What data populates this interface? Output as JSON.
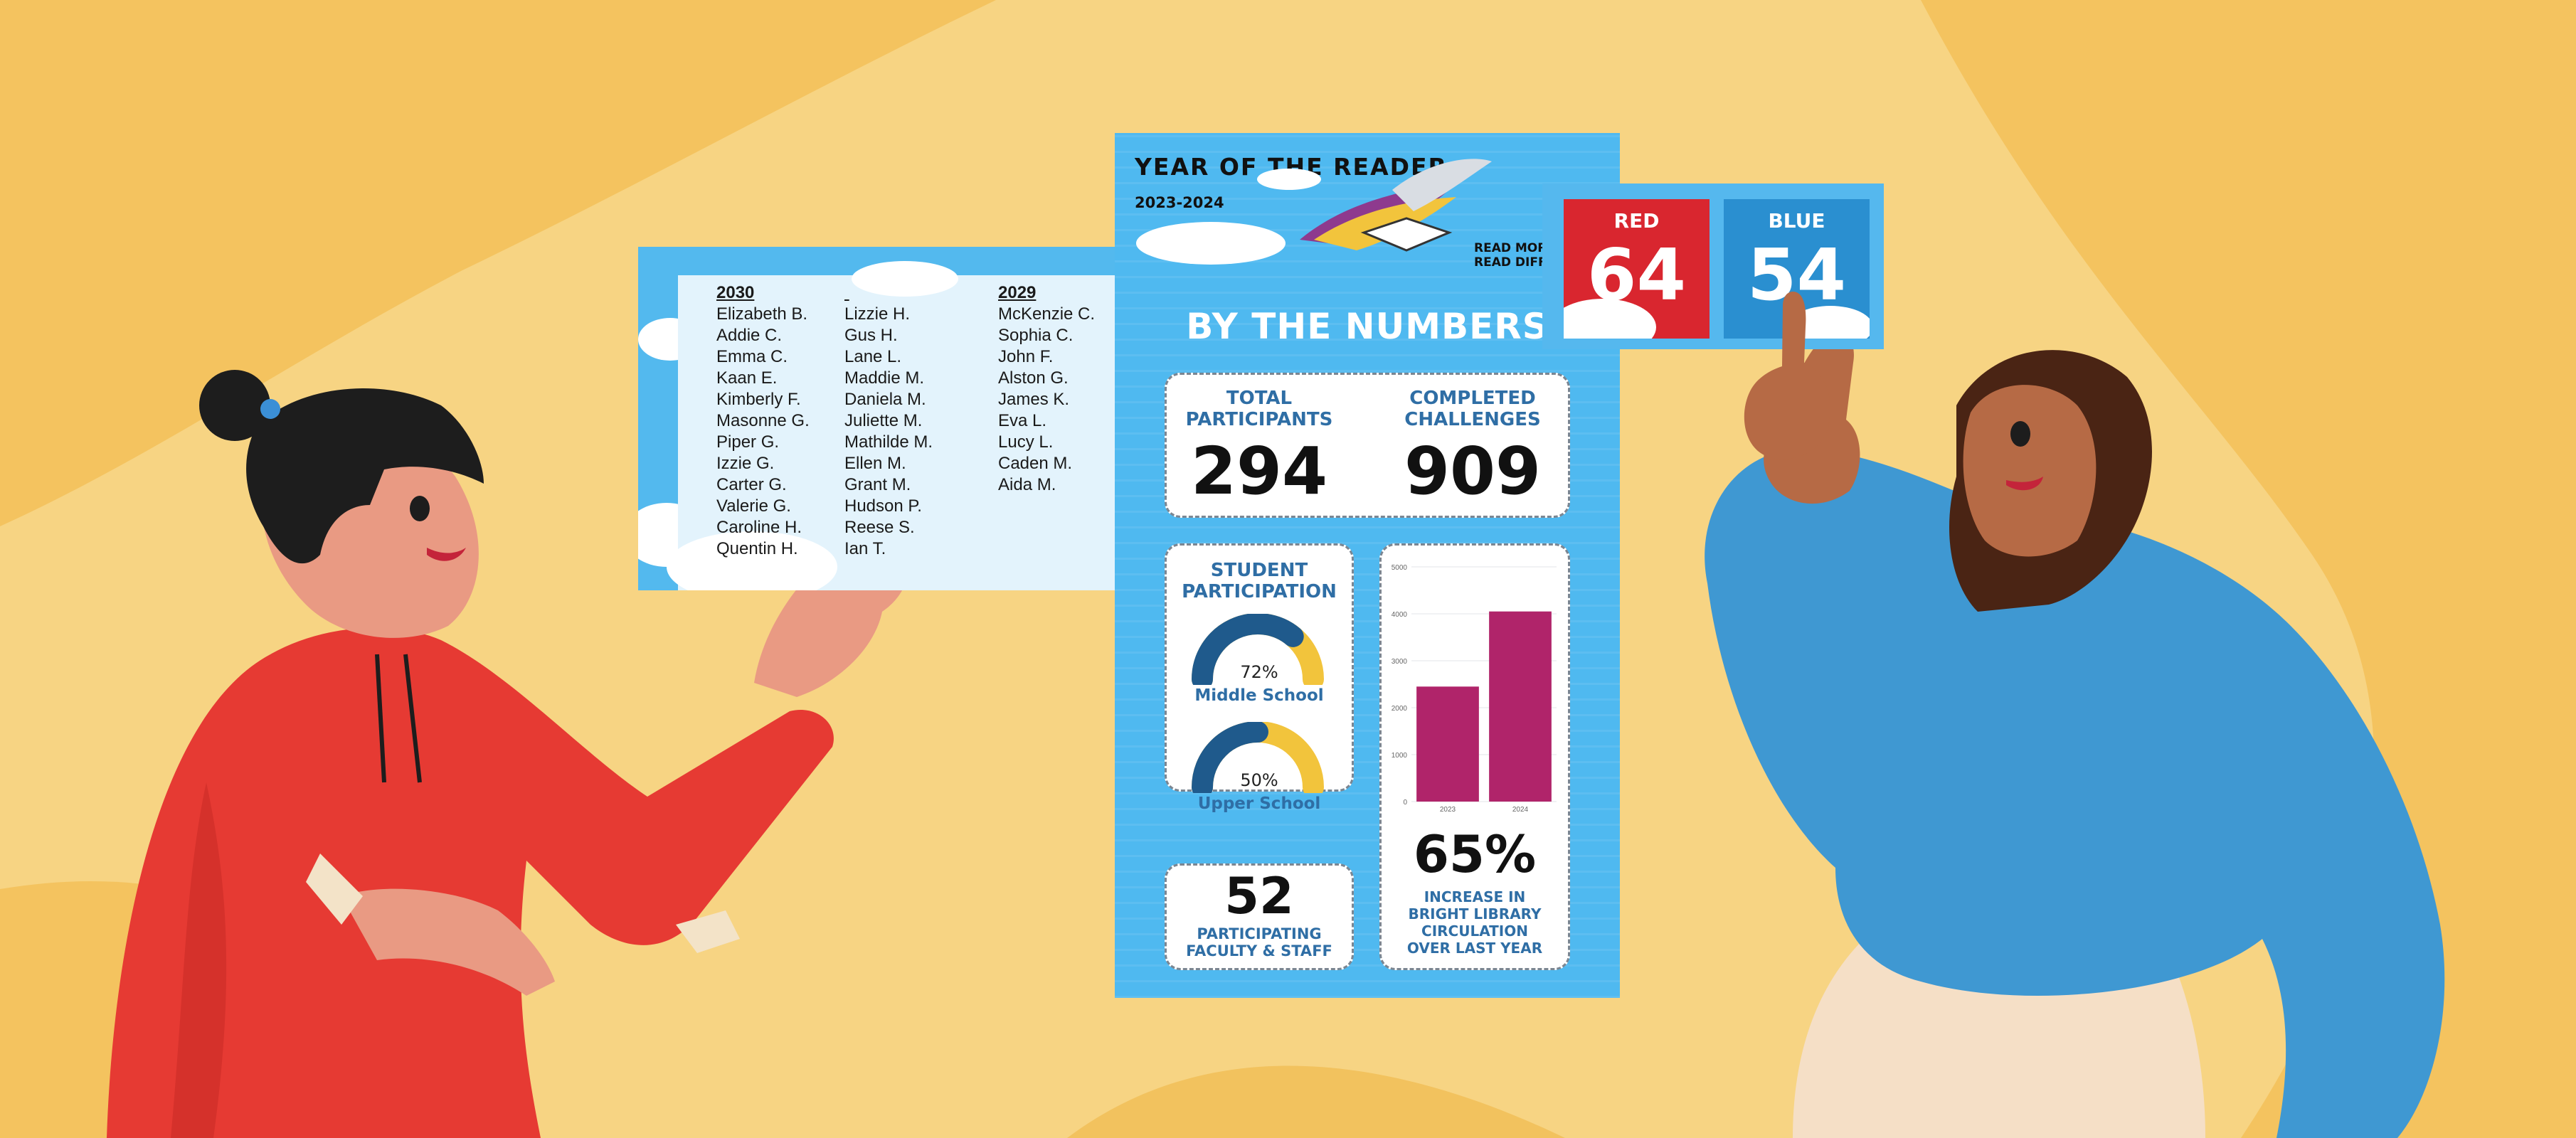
{
  "roster": {
    "columns": [
      {
        "heading": "2030",
        "names": [
          "Elizabeth B.",
          "Addie C.",
          "Emma C.",
          "Kaan E.",
          "Kimberly F.",
          "Masonne G.",
          "Piper G.",
          "Izzie G.",
          "Carter G.",
          "Valerie G.",
          "Caroline H.",
          "Quentin H."
        ]
      },
      {
        "heading": "",
        "names": [
          "Lizzie H.",
          "Gus H.",
          "Lane L.",
          "Maddie M.",
          "Daniela M.",
          "Juliette M.",
          "Mathilde M.",
          "Ellen M.",
          "Grant M.",
          "Hudson P.",
          "Reese S.",
          "Ian T."
        ]
      },
      {
        "heading": "2029",
        "names": [
          "McKenzie C.",
          "Sophia C.",
          "John F.",
          "Alston G.",
          "James K.",
          "Eva L.",
          "Lucy L.",
          "Caden M.",
          "Aida M."
        ]
      }
    ]
  },
  "infographic": {
    "title": "YEAR OF THE READER",
    "years": "2023-2024",
    "tagline_1": "READ MORE",
    "tagline_2": "READ DIFF",
    "section_title": "BY THE NUMBERS",
    "total_label_1": "TOTAL",
    "total_label_2": "PARTICIPANTS",
    "total_value": "294",
    "challenges_label_1": "COMPLETED",
    "challenges_label_2": "CHALLENGES",
    "challenges_value": "909",
    "student_label_1": "STUDENT",
    "student_label_2": "PARTICIPATION",
    "gauges": [
      {
        "percent_text": "72%",
        "label": "Middle School",
        "value": 0.72
      },
      {
        "percent_text": "50%",
        "label": "Upper School",
        "value": 0.5
      }
    ],
    "faculty_value": "52",
    "faculty_label_1": "PARTICIPATING",
    "faculty_label_2": "FACULTY & STAFF",
    "circ_value": "65%",
    "circ_label_1": "INCREASE IN",
    "circ_label_2": "BRIGHT LIBRARY",
    "circ_label_3": "CIRCULATION",
    "circ_label_4": "OVER LAST YEAR",
    "colors": {
      "gauge_dark": "#1f5a8c",
      "gauge_light": "#f2c43c",
      "bar": "#b0246a"
    }
  },
  "chart_data": {
    "type": "bar",
    "categories": [
      "2023",
      "2024"
    ],
    "values": [
      2450,
      4050
    ],
    "ylim": [
      0,
      5000
    ],
    "yticks": [
      "0",
      "1000",
      "2000",
      "3000",
      "4000",
      "5000"
    ],
    "grid": true
  },
  "score": {
    "teams": [
      {
        "name": "RED",
        "value": "64",
        "color": "#d9262f"
      },
      {
        "name": "BLUE",
        "value": "54",
        "color": "#2a8fd0"
      }
    ]
  }
}
